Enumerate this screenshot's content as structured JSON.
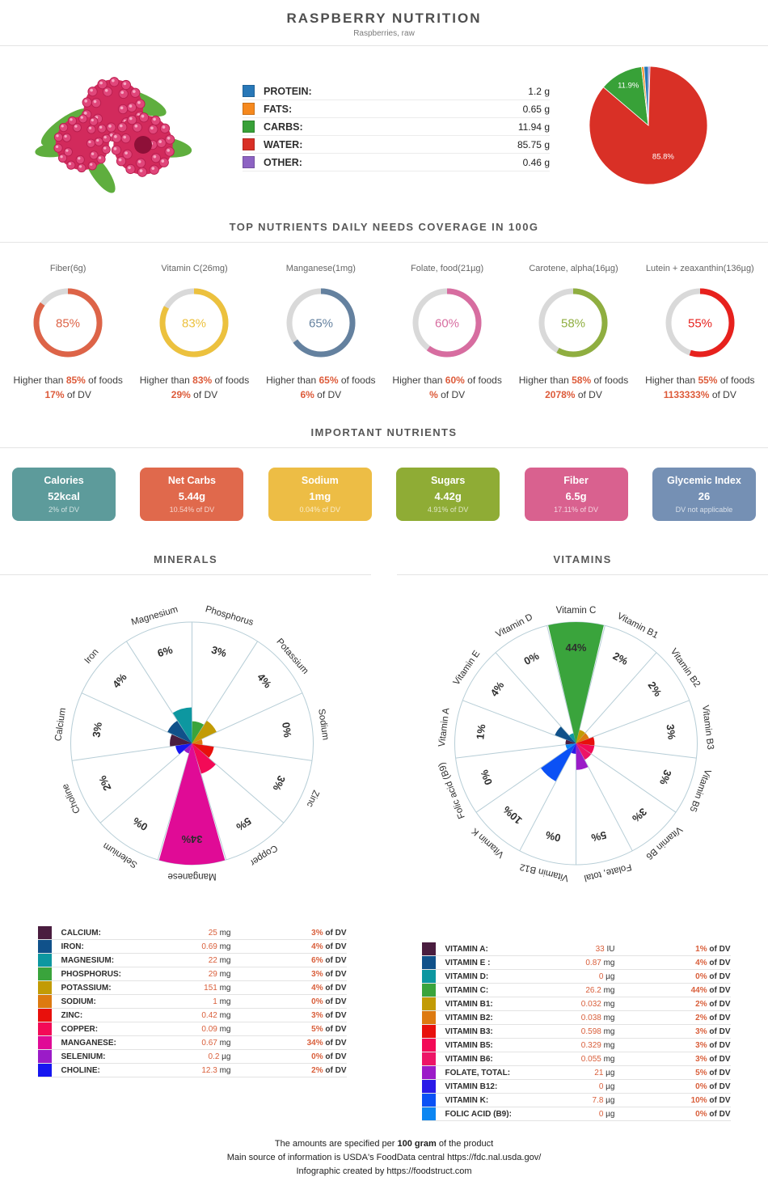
{
  "header": {
    "title": "RASPBERRY NUTRITION",
    "subtitle": "Raspberries, raw"
  },
  "sections": {
    "top_nutrients": "TOP NUTRIENTS DAILY NEEDS COVERAGE IN 100G",
    "important": "IMPORTANT NUTRIENTS"
  },
  "strings": {
    "higher_than": "Higher than",
    "of_foods": "of foods",
    "of_dv": "of DV"
  },
  "colors": {
    "accent": "#dd5b3a",
    "divider": "#e4e4e4",
    "gauge_track": "#d9d9d9",
    "rose_grid": "#b6cdd6"
  },
  "macros": {
    "items": [
      {
        "key": "protein",
        "label": "PROTEIN:",
        "value": "1.2 g",
        "grams": 1.2,
        "color": "#2878b8"
      },
      {
        "key": "fats",
        "label": "FATS:",
        "value": "0.65 g",
        "grams": 0.65,
        "color": "#f6891e"
      },
      {
        "key": "carbs",
        "label": "CARBS:",
        "value": "11.94 g",
        "grams": 11.94,
        "color": "#38a138",
        "pie_label": "11.9%",
        "pie_label_r": 0.72
      },
      {
        "key": "water",
        "label": "WATER:",
        "value": "85.75 g",
        "grams": 85.75,
        "color": "#d93026",
        "pie_label": "85.8%",
        "pie_label_r": 0.62
      },
      {
        "key": "other",
        "label": "OTHER:",
        "value": "0.46 g",
        "grams": 0.46,
        "color": "#8d63c3"
      }
    ],
    "pie": {
      "clockwise_order": [
        4,
        3,
        2,
        1,
        0
      ]
    }
  },
  "gauges": {
    "items": [
      {
        "key": "fiber",
        "label": "Fiber(6g)",
        "value": 85,
        "percent_label": "85%",
        "color": "#dd6448",
        "higher_than": "85%",
        "dv": "17%"
      },
      {
        "key": "vitamin-c",
        "label": "Vitamin C(26mg)",
        "value": 83,
        "percent_label": "83%",
        "color": "#ecc13e",
        "higher_than": "83%",
        "dv": "29%"
      },
      {
        "key": "manganese",
        "label": "Manganese(1mg)",
        "value": 65,
        "percent_label": "65%",
        "color": "#64819f",
        "higher_than": "65%",
        "dv": "6%"
      },
      {
        "key": "folate",
        "label": "Folate, food(21µg)",
        "value": 60,
        "percent_label": "60%",
        "color": "#d76da0",
        "higher_than": "60%",
        "dv": "%"
      },
      {
        "key": "carotene",
        "label": "Carotene, alpha(16µg)",
        "value": 58,
        "percent_label": "58%",
        "color": "#8fae40",
        "higher_than": "58%",
        "dv": "2078%"
      },
      {
        "key": "lutein",
        "label": "Lutein + zeaxanthin(136µg)",
        "value": 55,
        "percent_label": "55%",
        "color": "#e7211d",
        "higher_than": "55%",
        "dv": "1133333%"
      }
    ]
  },
  "important": {
    "cards": [
      {
        "key": "calories",
        "title": "Calories",
        "value": "52kcal",
        "dv": "2% of DV",
        "color": "#5d9b9b"
      },
      {
        "key": "net-carbs",
        "title": "Net Carbs",
        "value": "5.44g",
        "dv": "10.54% of DV",
        "color": "#e0694c"
      },
      {
        "key": "sodium",
        "title": "Sodium",
        "value": "1mg",
        "dv": "0.04% of DV",
        "color": "#edbd45"
      },
      {
        "key": "sugars",
        "title": "Sugars",
        "value": "4.42g",
        "dv": "4.91% of DV",
        "color": "#8fac35"
      },
      {
        "key": "fiber",
        "title": "Fiber",
        "value": "6.5g",
        "dv": "17.11% of DV",
        "color": "#d9618f"
      },
      {
        "key": "glycemic-index",
        "title": "Glycemic Index",
        "value": "26",
        "dv": "DV not applicable",
        "color": "#7590b4"
      }
    ]
  },
  "minerals": {
    "title": "MINERALS",
    "max_pct": 34,
    "first_center_angle": -81.82,
    "slices": [
      {
        "name": "Calcium",
        "table": "CALCIUM:",
        "pct": 3,
        "color": "#4a1d3f",
        "amount": "25",
        "unit": "mg",
        "dv": "3%"
      },
      {
        "name": "Iron",
        "table": "IRON:",
        "pct": 4,
        "color": "#10518a",
        "amount": "0.69",
        "unit": "mg",
        "dv": "4%"
      },
      {
        "name": "Magnesium",
        "table": "MAGNESIUM:",
        "pct": 6,
        "color": "#0d97a0",
        "amount": "22",
        "unit": "mg",
        "dv": "6%"
      },
      {
        "name": "Phosphorus",
        "table": "PHOSPHORUS:",
        "pct": 3,
        "color": "#3aa43c",
        "amount": "29",
        "unit": "mg",
        "dv": "3%"
      },
      {
        "name": "Potassium",
        "table": "POTASSIUM:",
        "pct": 4,
        "color": "#c29b05",
        "amount": "151",
        "unit": "mg",
        "dv": "4%"
      },
      {
        "name": "Sodium",
        "table": "SODIUM:",
        "pct": 0,
        "color": "#dd7a10",
        "amount": "1",
        "unit": "mg",
        "dv": "0%"
      },
      {
        "name": "Zinc",
        "table": "ZINC:",
        "pct": 3,
        "color": "#e8100c",
        "amount": "0.42",
        "unit": "mg",
        "dv": "3%"
      },
      {
        "name": "Copper",
        "table": "COPPER:",
        "pct": 5,
        "color": "#f30a57",
        "amount": "0.09",
        "unit": "mg",
        "dv": "5%"
      },
      {
        "name": "Manganese",
        "table": "MANGANESE:",
        "pct": 34,
        "color": "#e00b96",
        "amount": "0.67",
        "unit": "mg",
        "dv": "34%"
      },
      {
        "name": "Selenium",
        "table": "SELENIUM:",
        "pct": 0,
        "color": "#9b1bc8",
        "amount": "0.2",
        "unit": "µg",
        "dv": "0%"
      },
      {
        "name": "Choline",
        "table": "CHOLINE:",
        "pct": 2,
        "color": "#1616f0",
        "amount": "12.3",
        "unit": "mg",
        "dv": "2%"
      }
    ]
  },
  "vitamins": {
    "title": "VITAMINS",
    "max_pct": 44,
    "first_center_angle": -83.08,
    "slices": [
      {
        "name": "Vitamin A",
        "table": "VITAMIN A:",
        "pct": 1,
        "color": "#4a1d3f",
        "amount": "33",
        "unit": "IU",
        "dv": "1%"
      },
      {
        "name": "Vitamin E",
        "table": "VITAMIN E :",
        "pct": 4,
        "color": "#10518a",
        "amount": "0.87",
        "unit": "mg",
        "dv": "4%"
      },
      {
        "name": "Vitamin D",
        "table": "VITAMIN D:",
        "pct": 0,
        "color": "#0d97a0",
        "amount": "0",
        "unit": "µg",
        "dv": "0%"
      },
      {
        "name": "Vitamin C",
        "table": "VITAMIN C:",
        "pct": 44,
        "color": "#3aa43c",
        "amount": "26.2",
        "unit": "mg",
        "dv": "44%"
      },
      {
        "name": "Vitamin B1",
        "table": "VITAMIN B1:",
        "pct": 2,
        "color": "#c29b05",
        "amount": "0.032",
        "unit": "mg",
        "dv": "2%"
      },
      {
        "name": "Vitamin B2",
        "table": "VITAMIN B2:",
        "pct": 2,
        "color": "#dd7a10",
        "amount": "0.038",
        "unit": "mg",
        "dv": "2%"
      },
      {
        "name": "Vitamin B3",
        "table": "VITAMIN B3:",
        "pct": 3,
        "color": "#e8100c",
        "amount": "0.598",
        "unit": "mg",
        "dv": "3%"
      },
      {
        "name": "Vitamin B5",
        "table": "VITAMIN B5:",
        "pct": 3,
        "color": "#f30a57",
        "amount": "0.329",
        "unit": "mg",
        "dv": "3%"
      },
      {
        "name": "Vitamin B6",
        "table": "VITAMIN B6:",
        "pct": 3,
        "color": "#ed1566",
        "amount": "0.055",
        "unit": "mg",
        "dv": "3%"
      },
      {
        "name": "Folate, total",
        "table": "FOLATE, TOTAL:",
        "pct": 5,
        "color": "#9b1bc8",
        "amount": "21",
        "unit": "µg",
        "dv": "5%"
      },
      {
        "name": "Vitamin B12",
        "table": "VITAMIN B12:",
        "pct": 0,
        "color": "#2a1ae8",
        "amount": "0",
        "unit": "µg",
        "dv": "0%"
      },
      {
        "name": "Vitamin K",
        "table": "VITAMIN K:",
        "pct": 10,
        "color": "#0b51f5",
        "amount": "7.8",
        "unit": "µg",
        "dv": "10%"
      },
      {
        "name": "Folic acid (B9)",
        "table": "FOLIC ACID (B9):",
        "pct": 0,
        "color": "#0c86f2",
        "amount": "0",
        "unit": "µg",
        "dv": "0%"
      }
    ]
  },
  "footer": {
    "line1_prefix": "The amounts are specified per ",
    "line1_bold": "100 gram",
    "line1_suffix": " of the product",
    "line2_prefix": "Main source of information is USDA's FoodData central ",
    "line2_link": "https://fdc.nal.usda.gov/",
    "line3_prefix": "Infographic created by ",
    "line3_link": "https://foodstruct.com"
  },
  "chart_data": [
    {
      "type": "pie",
      "title": "Macronutrient composition (g per 100g)",
      "series": [
        {
          "name": "Protein",
          "value": 1.2
        },
        {
          "name": "Fats",
          "value": 0.65
        },
        {
          "name": "Carbs",
          "value": 11.94
        },
        {
          "name": "Water",
          "value": 85.75
        },
        {
          "name": "Other",
          "value": 0.46
        }
      ],
      "shown_labels": [
        "11.9%",
        "85.8%"
      ],
      "legend_position": "left"
    },
    {
      "type": "donut",
      "title": "TOP NUTRIENTS DAILY NEEDS COVERAGE IN 100G",
      "categories": [
        "Fiber(6g)",
        "Vitamin C(26mg)",
        "Manganese(1mg)",
        "Folate, food(21µg)",
        "Carotene, alpha(16µg)",
        "Lutein + zeaxanthin(136µg)"
      ],
      "values": [
        85,
        83,
        65,
        60,
        58,
        55
      ],
      "dv_values": [
        "17%",
        "29%",
        "6%",
        "%",
        "2078%",
        "1133333%"
      ]
    },
    {
      "type": "polar-bar",
      "title": "MINERALS (% of DV)",
      "categories": [
        "Calcium",
        "Iron",
        "Magnesium",
        "Phosphorus",
        "Potassium",
        "Sodium",
        "Zinc",
        "Copper",
        "Manganese",
        "Selenium",
        "Choline"
      ],
      "values": [
        3,
        4,
        6,
        3,
        4,
        0,
        3,
        5,
        34,
        0,
        2
      ]
    },
    {
      "type": "polar-bar",
      "title": "VITAMINS (% of DV)",
      "categories": [
        "Vitamin A",
        "Vitamin E",
        "Vitamin D",
        "Vitamin C",
        "Vitamin B1",
        "Vitamin B2",
        "Vitamin B3",
        "Vitamin B5",
        "Vitamin B6",
        "Folate, total",
        "Vitamin B12",
        "Vitamin K",
        "Folic acid (B9)"
      ],
      "values": [
        1,
        4,
        0,
        44,
        2,
        2,
        3,
        3,
        3,
        5,
        0,
        10,
        0
      ]
    }
  ]
}
